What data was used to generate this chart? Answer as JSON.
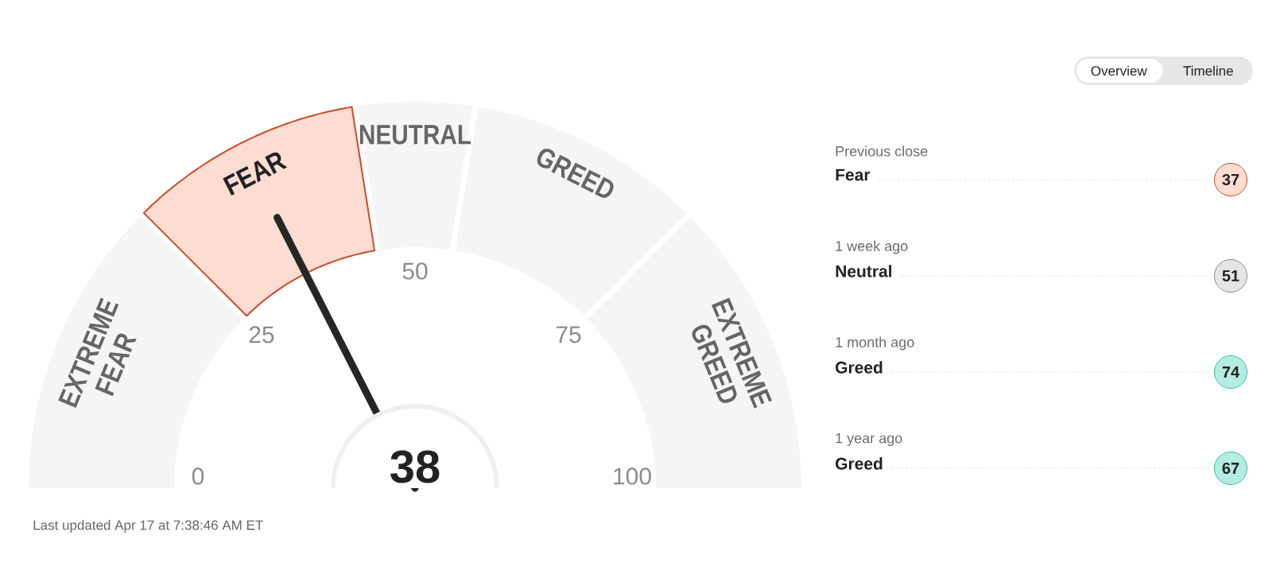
{
  "chart_data": [
    {
      "type": "donut",
      "categories": [
        "EXTREME FEAR",
        "FEAR",
        "NEUTRAL",
        "GREED",
        "EXTREME GREED"
      ],
      "values": [
        25,
        20,
        10,
        20,
        25
      ],
      "colors": [
        "#f5f5f5",
        "#fddcd2",
        "#f5f5f5",
        "#f5f5f5",
        "#f5f5f5"
      ],
      "needle": "FEAR",
      "annotations": [
        "38",
        "0",
        "25",
        "50",
        "75",
        "100",
        "Last updated Apr 17 at 7:38:46 AM ET"
      ]
    },
    {
      "type": "other",
      "categories": [
        "Previous close",
        "1 week ago",
        "1 month ago",
        "1 year ago"
      ],
      "values": [
        37,
        51,
        74,
        67
      ],
      "colors": [
        "#fddcd2",
        "#e5e5e5",
        "#b5ece1",
        "#b5ece1"
      ],
      "data_labels": true,
      "annotations": [
        "Fear",
        "Neutral",
        "Greed",
        "Greed",
        "Overview",
        "Timeline"
      ]
    }
  ]
}
